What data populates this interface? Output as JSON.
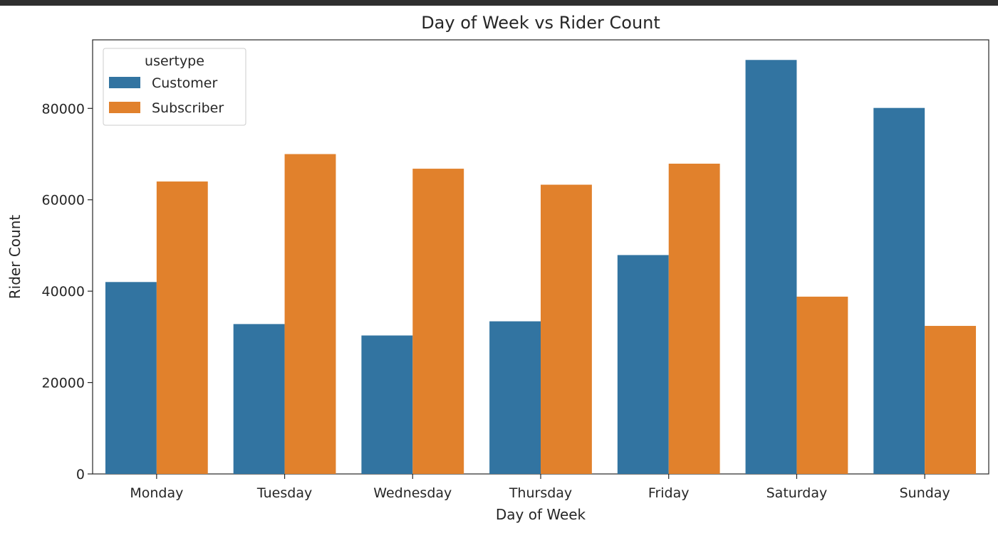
{
  "chart_data": {
    "type": "bar",
    "title": "Day of Week vs Rider Count",
    "xlabel": "Day of Week",
    "ylabel": "Rider Count",
    "categories": [
      "Monday",
      "Tuesday",
      "Wednesday",
      "Thursday",
      "Friday",
      "Saturday",
      "Sunday"
    ],
    "series": [
      {
        "name": "Customer",
        "color": "#3274a1",
        "values": [
          42000,
          32800,
          30300,
          33400,
          47900,
          90600,
          80100
        ]
      },
      {
        "name": "Subscriber",
        "color": "#e1812c",
        "values": [
          64000,
          70000,
          66800,
          63300,
          67900,
          38800,
          32400
        ]
      }
    ],
    "ylim": [
      0,
      95000
    ],
    "yticks": [
      0,
      20000,
      40000,
      60000,
      80000
    ],
    "ytick_labels": [
      "0",
      "20000",
      "40000",
      "60000",
      "80000"
    ],
    "legend": {
      "title": "usertype",
      "position": "top-left"
    },
    "grid": false
  }
}
